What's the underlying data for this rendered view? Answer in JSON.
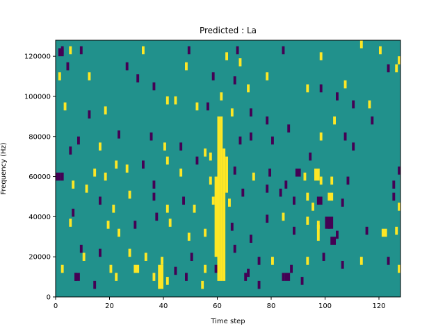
{
  "chart_data": {
    "type": "heatmap",
    "title": "Predicted : La",
    "xlabel": "Time step",
    "ylabel": "Frequency (Hz)",
    "xlim": [
      0,
      128
    ],
    "ylim": [
      0,
      128000
    ],
    "x_ticks": [
      0,
      20,
      40,
      60,
      80,
      100,
      120
    ],
    "y_ticks": [
      0,
      20000,
      40000,
      60000,
      80000,
      100000,
      120000
    ],
    "x_tick_labels": [
      "0",
      "20",
      "40",
      "60",
      "80",
      "100",
      "120"
    ],
    "y_tick_labels": [
      "0",
      "20000",
      "40000",
      "60000",
      "80000",
      "100000",
      "120000"
    ],
    "grid": false,
    "colormap": "viridis",
    "colors": {
      "background": "#21918c",
      "low": "#440154",
      "high": "#fde725"
    },
    "default_value": 0,
    "cells": [
      {
        "t": 2,
        "f": 123000,
        "v": -1
      },
      {
        "t": 5,
        "f": 123000,
        "v": 1
      },
      {
        "t": 9,
        "f": 123000,
        "v": -1
      },
      {
        "t": 32,
        "f": 123000,
        "v": 1
      },
      {
        "t": 49,
        "f": 123000,
        "v": -1
      },
      {
        "t": 63,
        "f": 120000,
        "v": 1
      },
      {
        "t": 67,
        "f": 123000,
        "v": -1
      },
      {
        "t": 68,
        "f": 117000,
        "v": 1
      },
      {
        "t": 84,
        "f": 123000,
        "v": -1
      },
      {
        "t": 98,
        "f": 120000,
        "v": 1
      },
      {
        "t": 113,
        "f": 126000,
        "v": 1
      },
      {
        "t": 120,
        "f": 123000,
        "v": 1
      },
      {
        "t": 1,
        "f": 110000,
        "v": 1
      },
      {
        "t": 4,
        "f": 115000,
        "v": -1
      },
      {
        "t": 12,
        "f": 110000,
        "v": 1
      },
      {
        "t": 26,
        "f": 115000,
        "v": -1
      },
      {
        "t": 30,
        "f": 109000,
        "v": -1
      },
      {
        "t": 36,
        "f": 105000,
        "v": -1
      },
      {
        "t": 44,
        "f": 98000,
        "v": 1
      },
      {
        "t": 48,
        "f": 115000,
        "v": 1
      },
      {
        "t": 58,
        "f": 110000,
        "v": -1
      },
      {
        "t": 66,
        "f": 108000,
        "v": -1
      },
      {
        "t": 71,
        "f": 104000,
        "v": 1
      },
      {
        "t": 78,
        "f": 110000,
        "v": 1
      },
      {
        "t": 93,
        "f": 104000,
        "v": 1
      },
      {
        "t": 98,
        "f": 104000,
        "v": -1
      },
      {
        "t": 104,
        "f": 100000,
        "v": -1
      },
      {
        "t": 107,
        "f": 106000,
        "v": 1
      },
      {
        "t": 110,
        "f": 96000,
        "v": -1
      },
      {
        "t": 123,
        "f": 114000,
        "v": -1
      },
      {
        "t": 126,
        "f": 114000,
        "v": 1
      },
      {
        "t": 127,
        "f": 118000,
        "v": 1
      },
      {
        "t": 3,
        "f": 95000,
        "v": 1
      },
      {
        "t": 12,
        "f": 91000,
        "v": -1
      },
      {
        "t": 18,
        "f": 93000,
        "v": 1
      },
      {
        "t": 23,
        "f": 81000,
        "v": -1
      },
      {
        "t": 41,
        "f": 98000,
        "v": 1
      },
      {
        "t": 52,
        "f": 95000,
        "v": 1
      },
      {
        "t": 56,
        "f": 95000,
        "v": -1
      },
      {
        "t": 61,
        "f": 100000,
        "v": 1
      },
      {
        "t": 65,
        "f": 92000,
        "v": 1
      },
      {
        "t": 72,
        "f": 92000,
        "v": -1
      },
      {
        "t": 78,
        "f": 88000,
        "v": -1
      },
      {
        "t": 86,
        "f": 84000,
        "v": -1
      },
      {
        "t": 103,
        "f": 88000,
        "v": 1
      },
      {
        "t": 116,
        "f": 96000,
        "v": 1
      },
      {
        "t": 117,
        "f": 88000,
        "v": -1
      },
      {
        "t": 8,
        "f": 78000,
        "v": -1
      },
      {
        "t": 16,
        "f": 75000,
        "v": 1
      },
      {
        "t": 35,
        "f": 80000,
        "v": -1
      },
      {
        "t": 40,
        "f": 75000,
        "v": 1
      },
      {
        "t": 46,
        "f": 75000,
        "v": -1
      },
      {
        "t": 55,
        "f": 72000,
        "v": 1
      },
      {
        "t": 68,
        "f": 78000,
        "v": -1
      },
      {
        "t": 72,
        "f": 80000,
        "v": -1
      },
      {
        "t": 80,
        "f": 78000,
        "v": -1
      },
      {
        "t": 94,
        "f": 70000,
        "v": -1
      },
      {
        "t": 98,
        "f": 80000,
        "v": 1
      },
      {
        "t": 107,
        "f": 80000,
        "v": -1
      },
      {
        "t": 110,
        "f": 75000,
        "v": -1
      },
      {
        "t": 5,
        "f": 73000,
        "v": -1
      },
      {
        "t": 14,
        "f": 62000,
        "v": 1
      },
      {
        "t": 22,
        "f": 66000,
        "v": 1
      },
      {
        "t": 32,
        "f": 66000,
        "v": -1
      },
      {
        "t": 41,
        "f": 68000,
        "v": 1
      },
      {
        "t": 52,
        "f": 68000,
        "v": -1
      },
      {
        "t": 57,
        "f": 70000,
        "v": 1
      },
      {
        "t": 2,
        "f": 60000,
        "v": -1
      },
      {
        "t": 6,
        "f": 56000,
        "v": 1
      },
      {
        "t": 18,
        "f": 60000,
        "v": 1
      },
      {
        "t": 26,
        "f": 64000,
        "v": 1
      },
      {
        "t": 36,
        "f": 56000,
        "v": -1
      },
      {
        "t": 46,
        "f": 62000,
        "v": 1
      },
      {
        "t": 57,
        "f": 58000,
        "v": 1
      },
      {
        "t": 66,
        "f": 63000,
        "v": -1
      },
      {
        "t": 73,
        "f": 60000,
        "v": 1
      },
      {
        "t": 79,
        "f": 62000,
        "v": -1
      },
      {
        "t": 85,
        "f": 56000,
        "v": -1
      },
      {
        "t": 92,
        "f": 60000,
        "v": 1
      },
      {
        "t": 98,
        "f": 58000,
        "v": 1
      },
      {
        "t": 102,
        "f": 58000,
        "v": 1
      },
      {
        "t": 108,
        "f": 58000,
        "v": -1
      },
      {
        "t": 125,
        "f": 56000,
        "v": -1
      },
      {
        "t": 127,
        "f": 63000,
        "v": -1
      },
      {
        "t": 6,
        "f": 42000,
        "v": -1
      },
      {
        "t": 11,
        "f": 54000,
        "v": 1
      },
      {
        "t": 16,
        "f": 48000,
        "v": -1
      },
      {
        "t": 21,
        "f": 44000,
        "v": 1
      },
      {
        "t": 27,
        "f": 51000,
        "v": 1
      },
      {
        "t": 36,
        "f": 50000,
        "v": -1
      },
      {
        "t": 41,
        "f": 44000,
        "v": 1
      },
      {
        "t": 47,
        "f": 48000,
        "v": -1
      },
      {
        "t": 51,
        "f": 44000,
        "v": 1
      },
      {
        "t": 58,
        "f": 48000,
        "v": 1
      },
      {
        "t": 64,
        "f": 47000,
        "v": 1
      },
      {
        "t": 69,
        "f": 52000,
        "v": -1
      },
      {
        "t": 78,
        "f": 54000,
        "v": -1
      },
      {
        "t": 83,
        "f": 52000,
        "v": -1
      },
      {
        "t": 88,
        "f": 48000,
        "v": -1
      },
      {
        "t": 93,
        "f": 50000,
        "v": 1
      },
      {
        "t": 95,
        "f": 45000,
        "v": 1
      },
      {
        "t": 106,
        "f": 47000,
        "v": -1
      },
      {
        "t": 125,
        "f": 50000,
        "v": -1
      },
      {
        "t": 127,
        "f": 45000,
        "v": 1
      },
      {
        "t": 5,
        "f": 37000,
        "v": 1
      },
      {
        "t": 9,
        "f": 24000,
        "v": -1
      },
      {
        "t": 19,
        "f": 36000,
        "v": 1
      },
      {
        "t": 23,
        "f": 32000,
        "v": 1
      },
      {
        "t": 29,
        "f": 36000,
        "v": -1
      },
      {
        "t": 37,
        "f": 40000,
        "v": -1
      },
      {
        "t": 42,
        "f": 37000,
        "v": 1
      },
      {
        "t": 49,
        "f": 30000,
        "v": 1
      },
      {
        "t": 55,
        "f": 32000,
        "v": 1
      },
      {
        "t": 65,
        "f": 35000,
        "v": -1
      },
      {
        "t": 72,
        "f": 29000,
        "v": -1
      },
      {
        "t": 78,
        "f": 39000,
        "v": -1
      },
      {
        "t": 84,
        "f": 40000,
        "v": 1
      },
      {
        "t": 88,
        "f": 33000,
        "v": -1
      },
      {
        "t": 93,
        "f": 38000,
        "v": 1
      },
      {
        "t": 97,
        "f": 36000,
        "v": 1
      },
      {
        "t": 101,
        "f": 36000,
        "v": -1
      },
      {
        "t": 104,
        "f": 31000,
        "v": -1
      },
      {
        "t": 115,
        "f": 33000,
        "v": -1
      },
      {
        "t": 126,
        "f": 33000,
        "v": 1
      },
      {
        "t": 2,
        "f": 14000,
        "v": 1
      },
      {
        "t": 10,
        "f": 20000,
        "v": 1
      },
      {
        "t": 16,
        "f": 22000,
        "v": -1
      },
      {
        "t": 20,
        "f": 14000,
        "v": 1
      },
      {
        "t": 27,
        "f": 22000,
        "v": 1
      },
      {
        "t": 33,
        "f": 20000,
        "v": 1
      },
      {
        "t": 39,
        "f": 18000,
        "v": 1
      },
      {
        "t": 44,
        "f": 13000,
        "v": -1
      },
      {
        "t": 50,
        "f": 20000,
        "v": -1
      },
      {
        "t": 55,
        "f": 14000,
        "v": 1
      },
      {
        "t": 59,
        "f": 14000,
        "v": -1
      },
      {
        "t": 66,
        "f": 24000,
        "v": -1
      },
      {
        "t": 71,
        "f": 12000,
        "v": -1
      },
      {
        "t": 75,
        "f": 18000,
        "v": -1
      },
      {
        "t": 80,
        "f": 18000,
        "v": 1
      },
      {
        "t": 87,
        "f": 14000,
        "v": -1
      },
      {
        "t": 93,
        "f": 18000,
        "v": 1
      },
      {
        "t": 99,
        "f": 20000,
        "v": -1
      },
      {
        "t": 106,
        "f": 16000,
        "v": -1
      },
      {
        "t": 113,
        "f": 18000,
        "v": 1
      },
      {
        "t": 123,
        "f": 18000,
        "v": -1
      },
      {
        "t": 127,
        "f": 14000,
        "v": 1
      },
      {
        "t": 7,
        "f": 10000,
        "v": -1
      },
      {
        "t": 14,
        "f": 6000,
        "v": -1
      },
      {
        "t": 22,
        "f": 10000,
        "v": 1
      },
      {
        "t": 36,
        "f": 10000,
        "v": 1
      },
      {
        "t": 41,
        "f": 8000,
        "v": 1
      },
      {
        "t": 48,
        "f": 10000,
        "v": -1
      },
      {
        "t": 54,
        "f": 6000,
        "v": 1
      },
      {
        "t": 70,
        "f": 10000,
        "v": -1
      },
      {
        "t": 75,
        "f": 6000,
        "v": -1
      },
      {
        "t": 84,
        "f": 10000,
        "v": -1
      },
      {
        "t": 91,
        "f": 8000,
        "v": -1
      }
    ],
    "bands": [
      {
        "t0": 60,
        "t1": 61,
        "f0": 8000,
        "f1": 90000,
        "v": 1
      },
      {
        "t0": 61,
        "t1": 62,
        "f0": 8000,
        "f1": 90000,
        "v": 1
      },
      {
        "t0": 62,
        "t1": 63,
        "f0": 8000,
        "f1": 74000,
        "v": 1
      },
      {
        "t0": 59,
        "t1": 60,
        "f0": 20000,
        "f1": 60000,
        "v": 1
      },
      {
        "t0": 63,
        "t1": 64,
        "f0": 52000,
        "f1": 70000,
        "v": 1
      },
      {
        "t0": 100,
        "t1": 103,
        "f0": 34000,
        "f1": 40000,
        "v": -1
      },
      {
        "t0": 102,
        "t1": 104,
        "f0": 26000,
        "f1": 30000,
        "v": -1
      },
      {
        "t0": 7,
        "t1": 9,
        "f0": 8000,
        "f1": 12000,
        "v": -1
      },
      {
        "t0": 85,
        "t1": 87,
        "f0": 8000,
        "f1": 12000,
        "v": -1
      },
      {
        "t0": 97,
        "t1": 99,
        "f0": 46000,
        "f1": 50000,
        "v": -1
      },
      {
        "t0": 101,
        "t1": 103,
        "f0": 48000,
        "f1": 52000,
        "v": 1
      },
      {
        "t0": 89,
        "t1": 91,
        "f0": 60000,
        "f1": 64000,
        "v": -1
      },
      {
        "t0": 96,
        "t1": 98,
        "f0": 58000,
        "f1": 64000,
        "v": 1
      },
      {
        "t0": 38,
        "t1": 40,
        "f0": 4000,
        "f1": 16000,
        "v": 1
      },
      {
        "t0": 29,
        "t1": 31,
        "f0": 12000,
        "f1": 16000,
        "v": 1
      },
      {
        "t0": 0,
        "t1": 2,
        "f0": 58000,
        "f1": 62000,
        "v": -1
      },
      {
        "t0": 1,
        "t1": 3,
        "f0": 120000,
        "f1": 124000,
        "v": -1
      },
      {
        "t0": 121,
        "t1": 123,
        "f0": 30000,
        "f1": 34000,
        "v": 1
      },
      {
        "t0": 97,
        "t1": 98,
        "f0": 28000,
        "f1": 36000,
        "v": 1
      }
    ]
  }
}
